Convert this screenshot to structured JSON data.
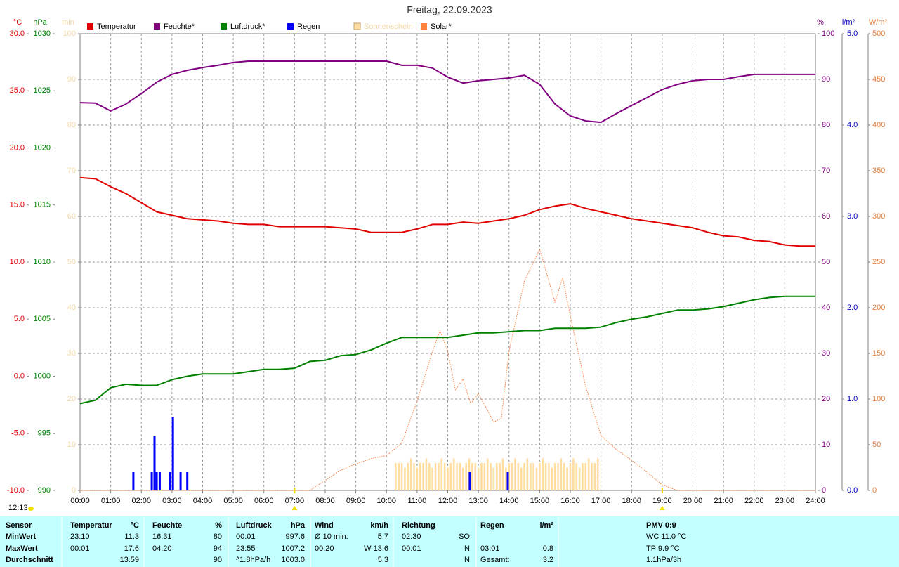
{
  "chart_data": {
    "type": "line",
    "title": "Freitag, 22.09.2023",
    "time": "12:13",
    "sun_marks": [
      7,
      19
    ],
    "grid": true,
    "grid_axis": 3,
    "xlim": [
      0,
      24
    ],
    "xticks": [
      {
        "value": 0,
        "label": "00:00"
      },
      {
        "value": 1,
        "label": "01:00"
      },
      {
        "value": 2,
        "label": "02:00"
      },
      {
        "value": 3,
        "label": "03:00"
      },
      {
        "value": 4,
        "label": "04:00"
      },
      {
        "value": 5,
        "label": "05:00"
      },
      {
        "value": 6,
        "label": "06:00"
      },
      {
        "value": 7,
        "label": "07:00"
      },
      {
        "value": 8,
        "label": "08:00"
      },
      {
        "value": 9,
        "label": "09:00"
      },
      {
        "value": 10,
        "label": "10:00"
      },
      {
        "value": 11,
        "label": "11:00"
      },
      {
        "value": 12,
        "label": "12:00"
      },
      {
        "value": 13,
        "label": "13:00"
      },
      {
        "value": 14,
        "label": "14:00"
      },
      {
        "value": 15,
        "label": "15:00"
      },
      {
        "value": 16,
        "label": "16:00"
      },
      {
        "value": 17,
        "label": "17:00"
      },
      {
        "value": 18,
        "label": "18:00"
      },
      {
        "value": 19,
        "label": "19:00"
      },
      {
        "value": 20,
        "label": "20:00"
      },
      {
        "value": 21,
        "label": "21:00"
      },
      {
        "value": 22,
        "label": "22:00"
      },
      {
        "value": 23,
        "label": "23:00"
      },
      {
        "value": 24,
        "label": "24:00"
      }
    ],
    "axes": [
      {
        "unit": "°C",
        "color": "#e00000",
        "lim": [
          -10,
          30
        ],
        "ticks": [
          {
            "value": -10,
            "label": "-10.0"
          },
          {
            "value": -5,
            "label": "-5.0"
          },
          {
            "value": 0,
            "label": "0.0"
          },
          {
            "value": 5,
            "label": "5.0"
          },
          {
            "value": 10,
            "label": "10.0"
          },
          {
            "value": 15,
            "label": "15.0"
          },
          {
            "value": 20,
            "label": "20.0"
          },
          {
            "value": 25,
            "label": "25.0"
          },
          {
            "value": 30,
            "label": "30.0"
          }
        ]
      },
      {
        "unit": "hPa",
        "color": "#008000",
        "lim": [
          990,
          1030
        ],
        "ticks": [
          990,
          995,
          1000,
          1005,
          1010,
          1015,
          1020,
          1025,
          1030
        ]
      },
      {
        "unit": "min",
        "color": "#f2d9a8",
        "lim": [
          0,
          100
        ],
        "ticks": [
          0,
          10,
          20,
          30,
          40,
          50,
          60,
          70,
          80,
          90,
          100
        ]
      },
      {
        "unit": "%",
        "color": "#800080",
        "lim": [
          0,
          100
        ],
        "ticks": [
          0,
          10,
          20,
          30,
          40,
          50,
          60,
          70,
          80,
          90,
          100
        ]
      },
      {
        "unit": "l/m²",
        "color": "#0000c0",
        "lim": [
          0,
          5
        ],
        "ticks": [
          {
            "value": 0,
            "label": "0.0"
          },
          {
            "value": 1,
            "label": "1.0"
          },
          {
            "value": 2,
            "label": "2.0"
          },
          {
            "value": 3,
            "label": "3.0"
          },
          {
            "value": 4,
            "label": "4.0"
          },
          {
            "value": 5,
            "label": "5.0"
          }
        ]
      },
      {
        "unit": "W/m²",
        "color": "#e08040",
        "lim": [
          0,
          500
        ],
        "ticks": [
          0,
          50,
          100,
          150,
          200,
          250,
          300,
          350,
          400,
          450,
          500
        ]
      }
    ],
    "x": [
      0,
      0.5,
      1,
      1.5,
      2,
      2.5,
      3,
      3.5,
      4,
      4.5,
      5,
      5.5,
      6,
      6.5,
      7,
      7.5,
      8,
      8.5,
      9,
      9.5,
      10,
      10.5,
      11,
      11.5,
      12,
      12.5,
      13,
      13.5,
      14,
      14.5,
      15,
      15.5,
      16,
      16.5,
      17,
      17.5,
      18,
      18.5,
      19,
      19.5,
      20,
      20.5,
      21,
      21.5,
      22,
      22.5,
      23,
      23.5,
      24
    ],
    "series": [
      {
        "name": "Temperatur",
        "color": "#e00000",
        "axis": 0,
        "style": "line",
        "values": [
          17.4,
          17.3,
          16.6,
          16.0,
          15.2,
          14.4,
          14.1,
          13.8,
          13.7,
          13.6,
          13.4,
          13.3,
          13.3,
          13.1,
          13.1,
          13.1,
          13.1,
          13.0,
          12.9,
          12.6,
          12.6,
          12.6,
          12.9,
          13.3,
          13.3,
          13.5,
          13.4,
          13.6,
          13.8,
          14.1,
          14.6,
          14.9,
          15.1,
          14.7,
          14.4,
          14.1,
          13.8,
          13.6,
          13.4,
          13.2,
          13.0,
          12.6,
          12.3,
          12.2,
          11.9,
          11.8,
          11.5,
          11.4,
          11.4
        ]
      },
      {
        "name": "Feuchte*",
        "color": "#800080",
        "axis": 3,
        "style": "line",
        "values": [
          84.9,
          84.8,
          83.1,
          84.6,
          86.9,
          89.4,
          91.1,
          92.0,
          92.6,
          93.1,
          93.7,
          94.0,
          94.0,
          94.0,
          94.0,
          94.0,
          94.0,
          94.0,
          94.0,
          94.0,
          94.0,
          93.1,
          93.1,
          92.5,
          90.5,
          89.2,
          89.7,
          90.0,
          90.3,
          90.9,
          88.9,
          84.6,
          82.0,
          80.9,
          80.6,
          82.5,
          84.3,
          86.0,
          87.8,
          88.9,
          89.7,
          90.0,
          90.0,
          90.6,
          91.1,
          91.1,
          91.1,
          91.1,
          91.1
        ]
      },
      {
        "name": "Luftdruck*",
        "color": "#008000",
        "axis": 1,
        "style": "line",
        "values": [
          997.6,
          997.9,
          999.0,
          999.3,
          999.2,
          999.2,
          999.7,
          1000.0,
          1000.2,
          1000.2,
          1000.2,
          1000.4,
          1000.6,
          1000.6,
          1000.7,
          1001.3,
          1001.4,
          1001.8,
          1001.9,
          1002.3,
          1002.9,
          1003.4,
          1003.4,
          1003.4,
          1003.4,
          1003.6,
          1003.8,
          1003.8,
          1003.9,
          1004.0,
          1004.0,
          1004.2,
          1004.2,
          1004.2,
          1004.3,
          1004.7,
          1005.0,
          1005.2,
          1005.5,
          1005.8,
          1005.8,
          1005.9,
          1006.1,
          1006.4,
          1006.7,
          1006.9,
          1007.0,
          1007.0,
          1007.0
        ]
      },
      {
        "name": "Regen",
        "color": "#0000ff",
        "axis": 4,
        "style": "bars",
        "x": [
          1.74,
          2.34,
          2.43,
          2.5,
          2.6,
          2.93,
          3.03,
          3.28,
          3.5,
          12.72,
          13.96
        ],
        "values": [
          0.2,
          0.2,
          0.6,
          0.2,
          0.2,
          0.2,
          0.8,
          0.2,
          0.2,
          0.2,
          0.2
        ]
      },
      {
        "name": "Sonnenschein",
        "color": "#ffdca0",
        "label_color": "#f2d9a8",
        "axis": 2,
        "style": "bars",
        "x": [
          10.3,
          10.4,
          10.5,
          10.6,
          10.7,
          10.8,
          10.9,
          11.0,
          11.1,
          11.2,
          11.3,
          11.4,
          11.5,
          11.6,
          11.7,
          11.8,
          11.9,
          12.0,
          12.1,
          12.2,
          12.3,
          12.4,
          12.5,
          12.6,
          12.7,
          12.8,
          12.9,
          13.0,
          13.1,
          13.2,
          13.3,
          13.4,
          13.5,
          13.6,
          13.7,
          13.8,
          13.9,
          14.0,
          14.1,
          14.2,
          14.3,
          14.4,
          14.5,
          14.6,
          14.7,
          14.8,
          14.9,
          15.0,
          15.1,
          15.2,
          15.3,
          15.4,
          15.5,
          15.6,
          15.7,
          15.8,
          15.9,
          16.0,
          16.1,
          16.2,
          16.3,
          16.4,
          16.5,
          16.6,
          16.7,
          16.8,
          16.9
        ],
        "values": [
          6,
          6,
          6,
          5,
          6,
          7,
          6,
          5,
          6,
          6,
          7,
          6,
          5,
          6,
          6,
          7,
          6,
          5,
          6,
          7,
          6,
          6,
          5,
          6,
          7,
          6,
          6,
          5,
          6,
          6,
          7,
          6,
          5,
          6,
          6,
          7,
          5,
          6,
          6,
          7,
          6,
          5,
          6,
          7,
          6,
          6,
          5,
          6,
          7,
          6,
          6,
          5,
          6,
          6,
          7,
          6,
          5,
          6,
          7,
          6,
          5,
          6,
          6,
          7,
          6,
          6,
          7
        ]
      },
      {
        "name": "Solar*",
        "color": "#ff8040",
        "axis": 5,
        "style": "dotted",
        "x": [
          0,
          7.5,
          8,
          8.5,
          9,
          9.5,
          10,
          10.5,
          11,
          11.5,
          11.75,
          12,
          12.25,
          12.5,
          12.75,
          13,
          13.25,
          13.5,
          13.75,
          14,
          14.5,
          15,
          15.5,
          15.75,
          16,
          16.5,
          17,
          17.5,
          18,
          18.5,
          19,
          19.5,
          24
        ],
        "values": [
          0,
          0,
          11,
          22,
          29,
          35,
          38,
          52,
          98,
          152,
          175,
          152,
          110,
          122,
          95,
          106,
          91,
          75,
          79,
          152,
          229,
          264,
          206,
          233,
          191,
          114,
          60,
          45,
          33,
          20,
          6,
          0,
          0
        ]
      }
    ]
  },
  "table": {
    "rows": [
      [
        "Sensor",
        "Temperatur",
        "°C",
        "Feuchte",
        "%",
        "Luftdruck",
        "hPa",
        "Wind",
        "km/h",
        "Richtung",
        null,
        "Regen",
        "l/m²",
        "PMV 0:9"
      ],
      [
        "MinWert",
        "23:10",
        "11.3",
        "16:31",
        "80",
        "00:01",
        "997.6",
        "Ø 10 min.",
        "5.7",
        "02:30",
        "SO",
        null,
        null,
        "WC 11.0 °C"
      ],
      [
        "MaxWert",
        "00:01",
        "17.6",
        "04:20",
        "94",
        "23:55",
        "1007.2",
        "00:20",
        "W 13.6",
        "00:01",
        "N",
        "03:01",
        "0.8",
        "TP 9.9 °C"
      ],
      [
        "Durchschnitt",
        null,
        "13.59",
        null,
        "90",
        "^1.8hPa/h",
        "1003.0",
        null,
        "5.3",
        null,
        "N",
        "Gesamt:",
        "3.2",
        "1.1hPa/3h"
      ]
    ]
  }
}
